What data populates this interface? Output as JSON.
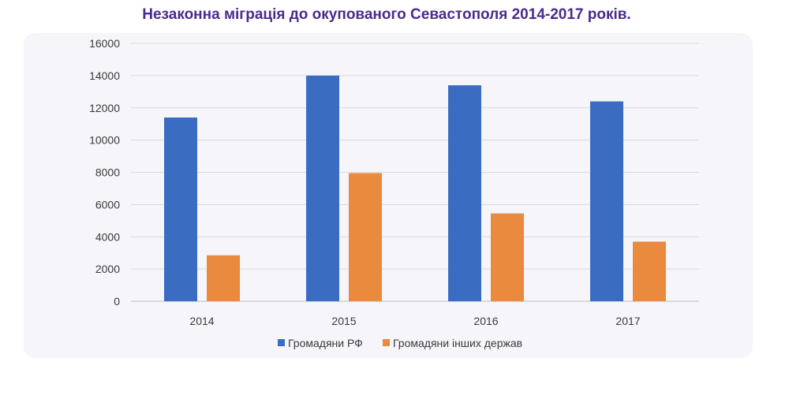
{
  "chart_data": {
    "type": "bar",
    "title": "Незаконна міграція до окупованого Севастополя 2014-2017 років.",
    "categories": [
      "2014",
      "2015",
      "2016",
      "2017"
    ],
    "series": [
      {
        "name": "Громадяни РФ",
        "color": "#3a6dc1",
        "values": [
          11400,
          14000,
          13400,
          12400
        ]
      },
      {
        "name": "Громадяни інших держав",
        "color": "#e98a3f",
        "values": [
          2850,
          7950,
          5450,
          3700
        ]
      }
    ],
    "ylim": [
      0,
      16000
    ],
    "yticks": [
      0,
      2000,
      4000,
      6000,
      8000,
      10000,
      12000,
      14000,
      16000
    ],
    "grid": true,
    "legend_position": "bottom-center"
  }
}
